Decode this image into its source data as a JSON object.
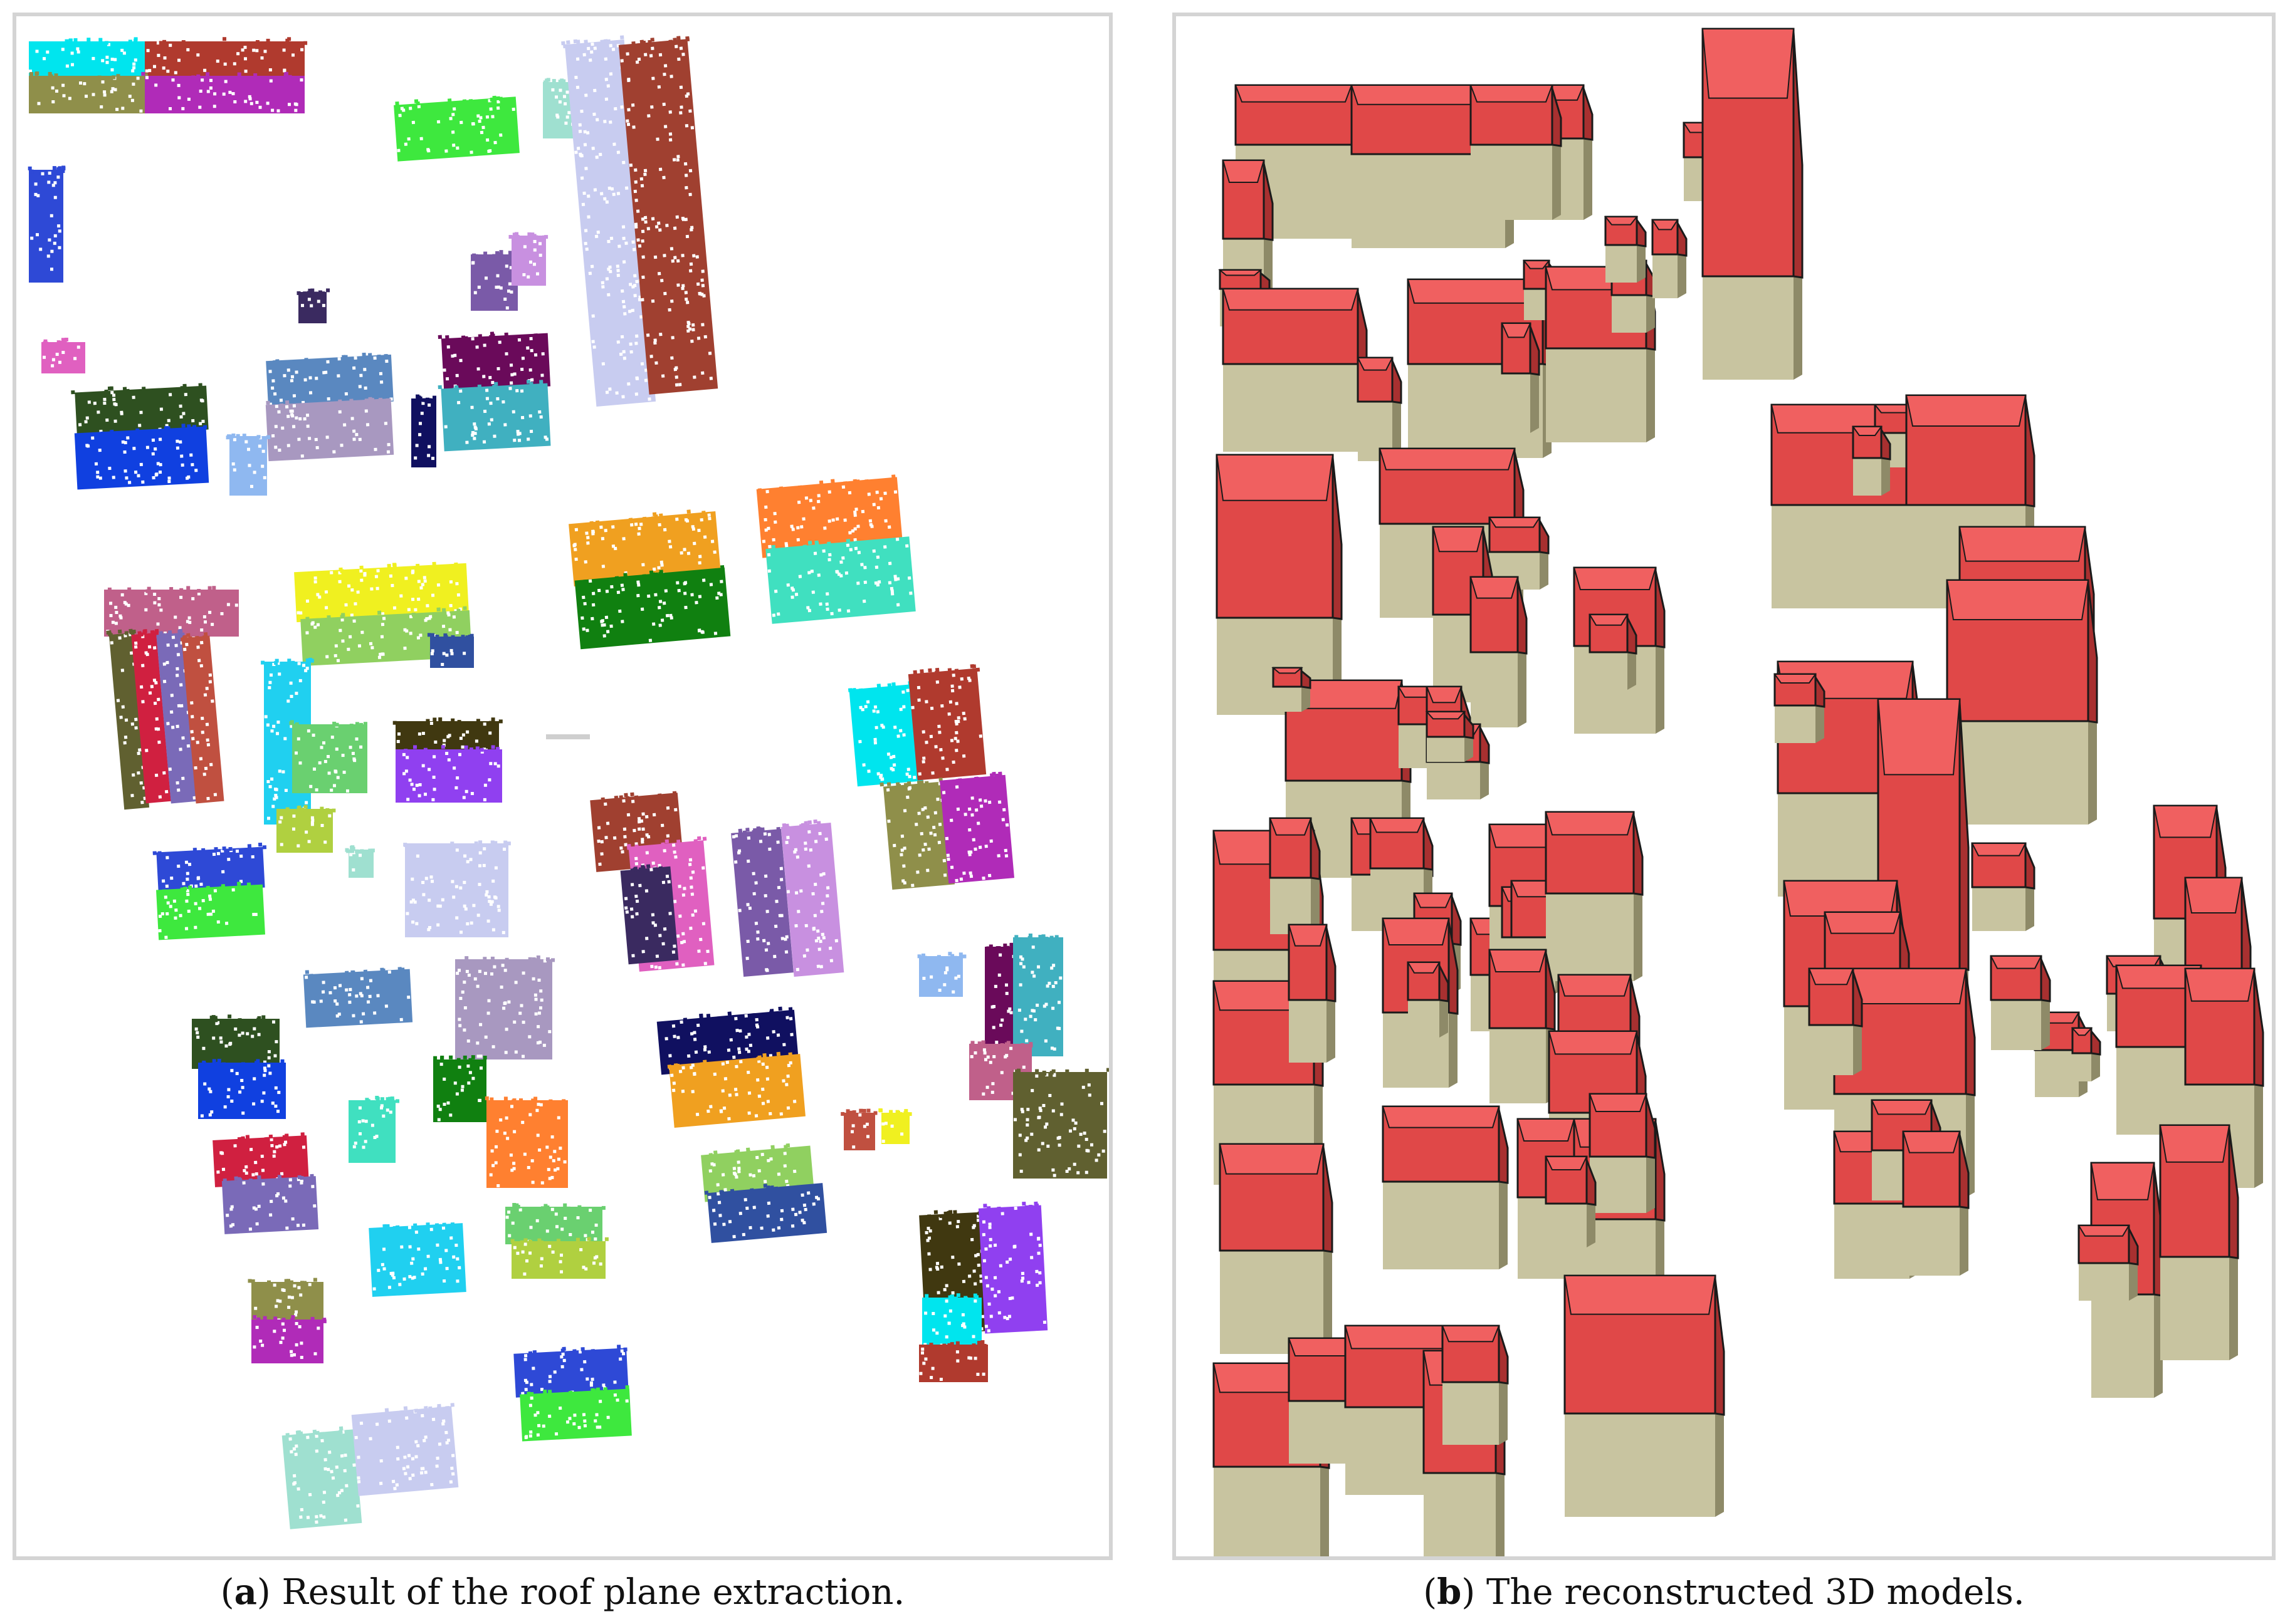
{
  "figure": {
    "panel_a": {
      "letter": "a",
      "caption": "Result of the roof plane extraction."
    },
    "panel_b": {
      "letter": "b",
      "caption": "The reconstructed 3D models."
    }
  },
  "colors": {
    "panel_border": "#d4d4d4",
    "roof_red": "#e04848",
    "roof_red_dark": "#a83030",
    "roof_red_light": "#f06060",
    "wall_khaki": "#c8c4a0",
    "wall_khaki_dark": "#8e8a68",
    "roof_outline": "#1a1a1a"
  }
}
